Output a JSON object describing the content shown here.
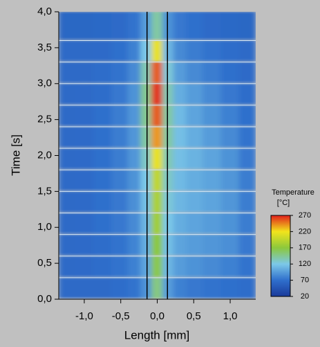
{
  "chart_data": {
    "type": "heatmap",
    "xlabel": "Length [mm]",
    "ylabel": "Time [s]",
    "xlim": [
      -1.35,
      1.35
    ],
    "ylim": [
      0,
      4
    ],
    "xticks": [
      {
        "value": -1,
        "label": "-1,0"
      },
      {
        "value": -0.5,
        "label": "-0,5"
      },
      {
        "value": 0,
        "label": "0,0"
      },
      {
        "value": 0.5,
        "label": "0,5"
      },
      {
        "value": 1,
        "label": "1,0"
      }
    ],
    "yticks": [
      {
        "value": 0,
        "label": "0,0"
      },
      {
        "value": 0.5,
        "label": "0,5"
      },
      {
        "value": 1,
        "label": "1,0"
      },
      {
        "value": 1.5,
        "label": "1,5"
      },
      {
        "value": 2,
        "label": "2,0"
      },
      {
        "value": 2.5,
        "label": "2,5"
      },
      {
        "value": 3,
        "label": "3,0"
      },
      {
        "value": 3.5,
        "label": "3,5"
      },
      {
        "value": 4,
        "label": "4,0"
      }
    ],
    "x": [
      -1.25,
      -1.0,
      -0.75,
      -0.5,
      -0.3,
      -0.15,
      0,
      0.15,
      0.3,
      0.5,
      0.75,
      1.0,
      1.25
    ],
    "y": [
      0.15,
      0.45,
      0.75,
      1.05,
      1.35,
      1.65,
      1.95,
      2.25,
      2.55,
      2.85,
      3.15,
      3.45,
      3.75
    ],
    "z": [
      [
        65,
        65,
        65,
        68,
        72,
        90,
        150,
        95,
        80,
        75,
        72,
        70,
        68
      ],
      [
        65,
        66,
        68,
        72,
        80,
        100,
        165,
        110,
        95,
        90,
        85,
        80,
        72
      ],
      [
        65,
        66,
        68,
        72,
        82,
        105,
        170,
        115,
        100,
        95,
        92,
        88,
        75
      ],
      [
        65,
        66,
        70,
        75,
        85,
        110,
        180,
        120,
        105,
        100,
        95,
        90,
        78
      ],
      [
        65,
        66,
        70,
        75,
        88,
        115,
        185,
        125,
        110,
        105,
        100,
        92,
        78
      ],
      [
        65,
        66,
        70,
        78,
        90,
        120,
        195,
        130,
        112,
        105,
        100,
        92,
        78
      ],
      [
        65,
        66,
        70,
        78,
        92,
        130,
        215,
        135,
        115,
        108,
        100,
        90,
        75
      ],
      [
        65,
        66,
        70,
        78,
        92,
        140,
        240,
        140,
        115,
        105,
        95,
        85,
        72
      ],
      [
        65,
        66,
        70,
        78,
        92,
        145,
        255,
        140,
        112,
        100,
        90,
        80,
        70
      ],
      [
        65,
        66,
        68,
        75,
        90,
        145,
        265,
        135,
        105,
        95,
        85,
        75,
        68
      ],
      [
        65,
        65,
        68,
        72,
        85,
        135,
        255,
        125,
        95,
        85,
        78,
        70,
        66
      ],
      [
        65,
        65,
        66,
        70,
        80,
        120,
        215,
        110,
        85,
        78,
        72,
        68,
        65
      ],
      [
        62,
        62,
        64,
        66,
        72,
        95,
        140,
        90,
        75,
        70,
        66,
        64,
        62
      ]
    ],
    "vlines": [
      -0.14,
      0.14
    ],
    "zlim": [
      20,
      270
    ],
    "colorbar_title": "Temperature",
    "colorbar_unit": "[°C]",
    "colorbar_ticks": [
      270,
      220,
      170,
      120,
      70,
      20
    ],
    "colormap": [
      "#1a3a9a",
      "#2f6fcc",
      "#7cc8e8",
      "#8cc83c",
      "#f2e41c",
      "#e0201c"
    ]
  }
}
